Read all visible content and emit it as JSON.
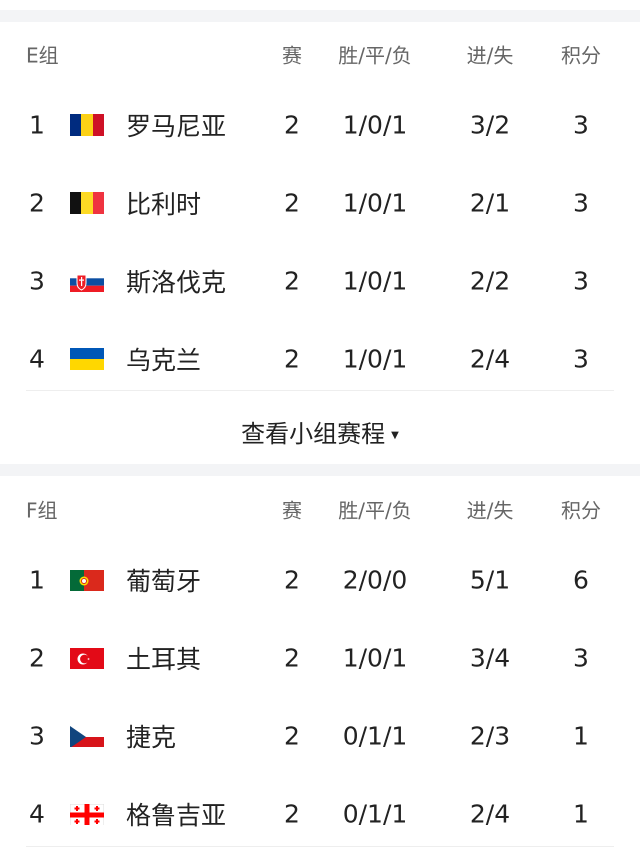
{
  "columns": {
    "played": "赛",
    "wdl": "胜/平/负",
    "goals": "进/失",
    "points": "积分"
  },
  "groups": [
    {
      "name": "E组",
      "teams": [
        {
          "rank": "1",
          "flag": "romania-flag",
          "name": "罗马尼亚",
          "played": "2",
          "wdl": "1/0/1",
          "goals": "3/2",
          "points": "3"
        },
        {
          "rank": "2",
          "flag": "belgium-flag",
          "name": "比利时",
          "played": "2",
          "wdl": "1/0/1",
          "goals": "2/1",
          "points": "3"
        },
        {
          "rank": "3",
          "flag": "slovakia-flag",
          "name": "斯洛伐克",
          "played": "2",
          "wdl": "1/0/1",
          "goals": "2/2",
          "points": "3"
        },
        {
          "rank": "4",
          "flag": "ukraine-flag",
          "name": "乌克兰",
          "played": "2",
          "wdl": "1/0/1",
          "goals": "2/4",
          "points": "3"
        }
      ]
    },
    {
      "name": "F组",
      "teams": [
        {
          "rank": "1",
          "flag": "portugal-flag",
          "name": "葡萄牙",
          "played": "2",
          "wdl": "2/0/0",
          "goals": "5/1",
          "points": "6"
        },
        {
          "rank": "2",
          "flag": "turkey-flag",
          "name": "土耳其",
          "played": "2",
          "wdl": "1/0/1",
          "goals": "3/4",
          "points": "3"
        },
        {
          "rank": "3",
          "flag": "czech-flag",
          "name": "捷克",
          "played": "2",
          "wdl": "0/1/1",
          "goals": "2/3",
          "points": "1"
        },
        {
          "rank": "4",
          "flag": "georgia-flag",
          "name": "格鲁吉亚",
          "played": "2",
          "wdl": "0/1/1",
          "goals": "2/4",
          "points": "1"
        }
      ]
    }
  ],
  "more_link": "查看小组赛程"
}
